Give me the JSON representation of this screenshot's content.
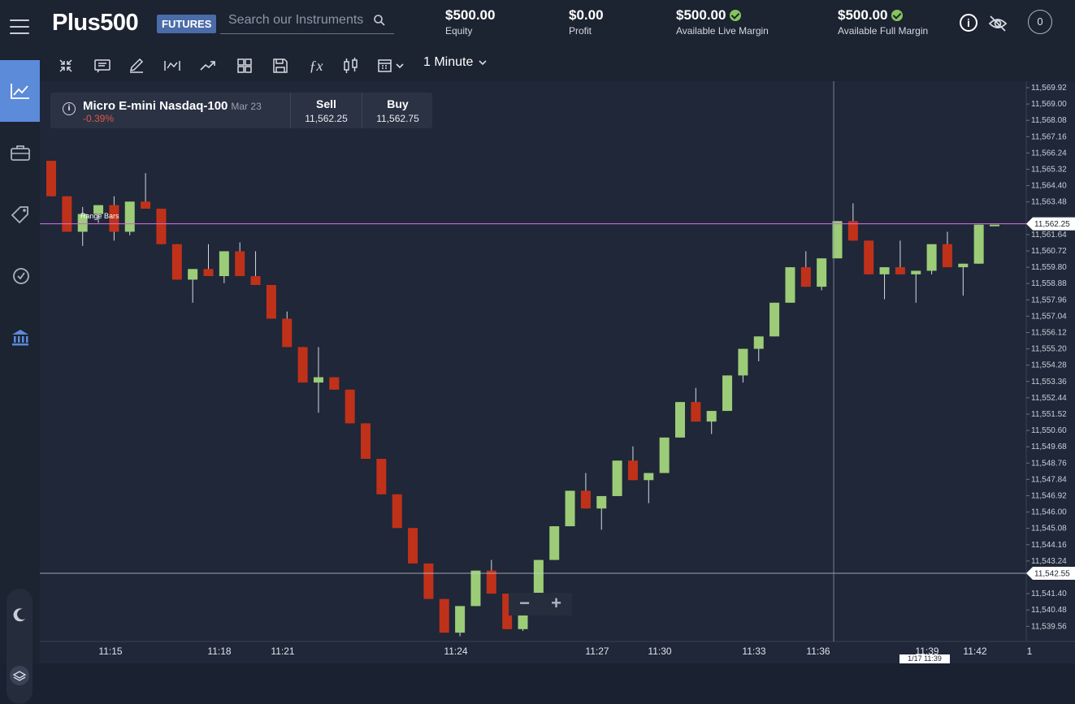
{
  "brand": {
    "logo": "Plus500",
    "badge": "FUTURES"
  },
  "search": {
    "placeholder": "Search our Instruments"
  },
  "stats": [
    {
      "value": "$500.00",
      "label": "Equity",
      "check": false
    },
    {
      "value": "$0.00",
      "label": "Profit",
      "check": false
    },
    {
      "value": "$500.00",
      "label": "Available Live Margin",
      "check": true
    },
    {
      "value": "$500.00",
      "label": "Available Full Margin",
      "check": true
    }
  ],
  "notifications_count": "0",
  "sidebar": [
    "chart-icon",
    "portfolio-icon",
    "tag-icon",
    "history-icon",
    "bank-icon"
  ],
  "toolbar": {
    "timeframe": "1 Minute"
  },
  "instrument": {
    "name": "Micro E-mini Nasdaq-100",
    "expiry": "Mar 23",
    "change": "-0.39%",
    "sell_label": "Sell",
    "sell_price": "11,562.25",
    "buy_label": "Buy",
    "buy_price": "11,562.75"
  },
  "chart_type_label": "Range Bars",
  "zoom": {
    "minus": "−",
    "plus": "+"
  },
  "colors": {
    "up": "#9ccc77",
    "down": "#c0311a",
    "bg": "#1f2738",
    "price_line": "#c86ad6",
    "accent": "#5b8bd9"
  },
  "chart_data": {
    "type": "candlestick",
    "price_axis": [
      "11,569.92",
      "11,569.00",
      "11,568.08",
      "11,567.16",
      "11,566.24",
      "11,565.32",
      "11,564.40",
      "11,563.48",
      "11,561.64",
      "11,560.72",
      "11,559.80",
      "11,558.88",
      "11,557.96",
      "11,557.04",
      "11,556.12",
      "11,555.20",
      "11,554.28",
      "11,553.36",
      "11,552.44",
      "11,551.52",
      "11,550.60",
      "11,549.68",
      "11,548.76",
      "11,547.84",
      "11,546.92",
      "11,546.00",
      "11,545.08",
      "11,544.16",
      "11,543.24",
      "11,541.40",
      "11,540.48",
      "11,539.56"
    ],
    "time_axis": [
      "11:15",
      "11:18",
      "11:21",
      "11:24",
      "11:27",
      "11:30",
      "11:33",
      "11:36",
      "11:39",
      "11:42",
      "1"
    ],
    "current_price": "11,562.25",
    "crosshair_price": "11,542.55",
    "crosshair_time": "1/17 11:39",
    "candles": [
      {
        "o": 11565.8,
        "c": 11563.8,
        "h": 11565.8,
        "l": 11563.8
      },
      {
        "o": 11563.8,
        "c": 11561.8,
        "h": 11563.8,
        "l": 11561.8
      },
      {
        "o": 11561.8,
        "c": 11562.8,
        "h": 11563.2,
        "l": 11561.0
      },
      {
        "o": 11562.8,
        "c": 11563.3,
        "h": 11563.3,
        "l": 11562.3
      },
      {
        "o": 11563.3,
        "c": 11561.8,
        "h": 11563.8,
        "l": 11561.3
      },
      {
        "o": 11561.8,
        "c": 11563.5,
        "h": 11563.5,
        "l": 11561.6
      },
      {
        "o": 11563.5,
        "c": 11563.1,
        "h": 11565.1,
        "l": 11563.1
      },
      {
        "o": 11563.1,
        "c": 11561.1,
        "h": 11563.1,
        "l": 11561.1
      },
      {
        "o": 11561.1,
        "c": 11559.1,
        "h": 11561.1,
        "l": 11559.1
      },
      {
        "o": 11559.1,
        "c": 11559.7,
        "h": 11559.7,
        "l": 11557.8
      },
      {
        "o": 11559.7,
        "c": 11559.3,
        "h": 11561.1,
        "l": 11559.3
      },
      {
        "o": 11559.3,
        "c": 11560.7,
        "h": 11560.7,
        "l": 11558.9
      },
      {
        "o": 11560.7,
        "c": 11559.3,
        "h": 11561.2,
        "l": 11559.3
      },
      {
        "o": 11559.3,
        "c": 11558.8,
        "h": 11560.7,
        "l": 11558.8
      },
      {
        "o": 11558.8,
        "c": 11556.9,
        "h": 11558.8,
        "l": 11556.9
      },
      {
        "o": 11556.9,
        "c": 11555.3,
        "h": 11557.3,
        "l": 11555.3
      },
      {
        "o": 11555.3,
        "c": 11553.3,
        "h": 11555.3,
        "l": 11553.3
      },
      {
        "o": 11553.3,
        "c": 11553.6,
        "h": 11555.3,
        "l": 11551.6
      },
      {
        "o": 11553.6,
        "c": 11552.9,
        "h": 11553.6,
        "l": 11552.9
      },
      {
        "o": 11552.9,
        "c": 11551.0,
        "h": 11552.9,
        "l": 11551.0
      },
      {
        "o": 11551.0,
        "c": 11549.0,
        "h": 11551.0,
        "l": 11549.0
      },
      {
        "o": 11549.0,
        "c": 11547.0,
        "h": 11549.0,
        "l": 11547.0
      },
      {
        "o": 11547.0,
        "c": 11545.1,
        "h": 11547.0,
        "l": 11545.1
      },
      {
        "o": 11545.1,
        "c": 11543.1,
        "h": 11545.1,
        "l": 11543.1
      },
      {
        "o": 11543.1,
        "c": 11541.1,
        "h": 11543.1,
        "l": 11541.1
      },
      {
        "o": 11541.1,
        "c": 11539.2,
        "h": 11541.1,
        "l": 11539.2
      },
      {
        "o": 11539.2,
        "c": 11540.7,
        "h": 11540.7,
        "l": 11539.0
      },
      {
        "o": 11540.7,
        "c": 11542.7,
        "h": 11542.7,
        "l": 11540.7
      },
      {
        "o": 11542.7,
        "c": 11541.4,
        "h": 11543.3,
        "l": 11541.4
      },
      {
        "o": 11541.4,
        "c": 11539.4,
        "h": 11541.4,
        "l": 11539.4
      },
      {
        "o": 11539.4,
        "c": 11541.3,
        "h": 11541.3,
        "l": 11539.3
      },
      {
        "o": 11541.3,
        "c": 11543.3,
        "h": 11543.3,
        "l": 11541.3
      },
      {
        "o": 11543.3,
        "c": 11545.2,
        "h": 11545.2,
        "l": 11543.3
      },
      {
        "o": 11545.2,
        "c": 11547.2,
        "h": 11547.2,
        "l": 11545.2
      },
      {
        "o": 11547.2,
        "c": 11546.2,
        "h": 11548.2,
        "l": 11546.2
      },
      {
        "o": 11546.2,
        "c": 11546.9,
        "h": 11546.9,
        "l": 11545.0
      },
      {
        "o": 11546.9,
        "c": 11548.9,
        "h": 11548.9,
        "l": 11546.9
      },
      {
        "o": 11548.9,
        "c": 11547.8,
        "h": 11549.7,
        "l": 11547.8
      },
      {
        "o": 11547.8,
        "c": 11548.2,
        "h": 11548.2,
        "l": 11546.5
      },
      {
        "o": 11548.2,
        "c": 11550.2,
        "h": 11550.2,
        "l": 11548.2
      },
      {
        "o": 11550.2,
        "c": 11552.2,
        "h": 11552.2,
        "l": 11550.2
      },
      {
        "o": 11552.2,
        "c": 11551.1,
        "h": 11553.0,
        "l": 11551.1
      },
      {
        "o": 11551.1,
        "c": 11551.7,
        "h": 11551.7,
        "l": 11550.4
      },
      {
        "o": 11551.7,
        "c": 11553.7,
        "h": 11553.7,
        "l": 11551.7
      },
      {
        "o": 11553.7,
        "c": 11555.2,
        "h": 11555.2,
        "l": 11553.3
      },
      {
        "o": 11555.2,
        "c": 11555.9,
        "h": 11555.9,
        "l": 11554.5
      },
      {
        "o": 11555.9,
        "c": 11557.8,
        "h": 11557.8,
        "l": 11555.9
      },
      {
        "o": 11557.8,
        "c": 11559.8,
        "h": 11559.8,
        "l": 11557.8
      },
      {
        "o": 11559.8,
        "c": 11558.7,
        "h": 11560.7,
        "l": 11558.7
      },
      {
        "o": 11558.7,
        "c": 11560.3,
        "h": 11560.3,
        "l": 11558.5
      },
      {
        "o": 11560.3,
        "c": 11562.4,
        "h": 11562.4,
        "l": 11560.3
      },
      {
        "o": 11562.4,
        "c": 11561.3,
        "h": 11563.4,
        "l": 11561.3
      },
      {
        "o": 11561.3,
        "c": 11559.4,
        "h": 11561.3,
        "l": 11559.4
      },
      {
        "o": 11559.4,
        "c": 11559.8,
        "h": 11559.8,
        "l": 11558.0
      },
      {
        "o": 11559.8,
        "c": 11559.4,
        "h": 11561.3,
        "l": 11559.4
      },
      {
        "o": 11559.4,
        "c": 11559.6,
        "h": 11559.6,
        "l": 11557.8
      },
      {
        "o": 11559.6,
        "c": 11561.1,
        "h": 11561.1,
        "l": 11559.4
      },
      {
        "o": 11561.1,
        "c": 11559.8,
        "h": 11561.8,
        "l": 11559.8
      },
      {
        "o": 11559.8,
        "c": 11560.0,
        "h": 11560.0,
        "l": 11558.2
      },
      {
        "o": 11560.0,
        "c": 11562.2,
        "h": 11562.2,
        "l": 11560.0
      },
      {
        "o": 11562.2,
        "c": 11562.2,
        "h": 11562.2,
        "l": 11562.2
      }
    ]
  }
}
